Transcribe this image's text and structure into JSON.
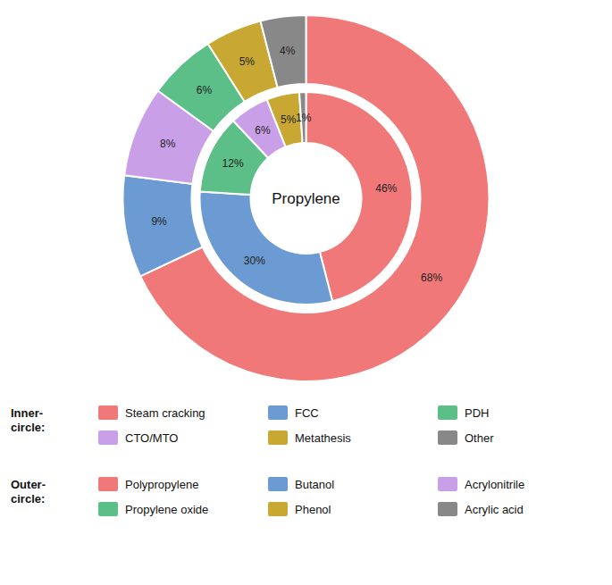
{
  "chart_data": {
    "type": "donut",
    "center_text": "Propylene",
    "data_labels": true,
    "series": [
      {
        "name": "Inner-\ncircle:",
        "categories": [
          "Steam cracking",
          "FCC",
          "PDH",
          "CTO/MTO",
          "Metathesis",
          "Other"
        ],
        "values": [
          46,
          30,
          12,
          6,
          5,
          1
        ],
        "value_labels": [
          "46%",
          "30%",
          "12%",
          "6%",
          "5%",
          "1%"
        ],
        "colors": [
          "#F07878",
          "#6B9BD2",
          "#5BBF87",
          "#C9A0E8",
          "#C8A832",
          "#888888"
        ]
      },
      {
        "name": "Outer-\ncircle:",
        "categories": [
          "Polypropylene",
          "Butanol",
          "Acrylonitrile",
          "Propylene oxide",
          "Phenol",
          "Acrylic acid"
        ],
        "values": [
          68,
          9,
          8,
          6,
          5,
          4
        ],
        "value_labels": [
          "68%",
          "9%",
          "8%",
          "6%",
          "5%",
          "4%"
        ],
        "colors": [
          "#F07878",
          "#6B9BD2",
          "#C9A0E8",
          "#5BBF87",
          "#C8A832",
          "#888888"
        ]
      }
    ]
  }
}
